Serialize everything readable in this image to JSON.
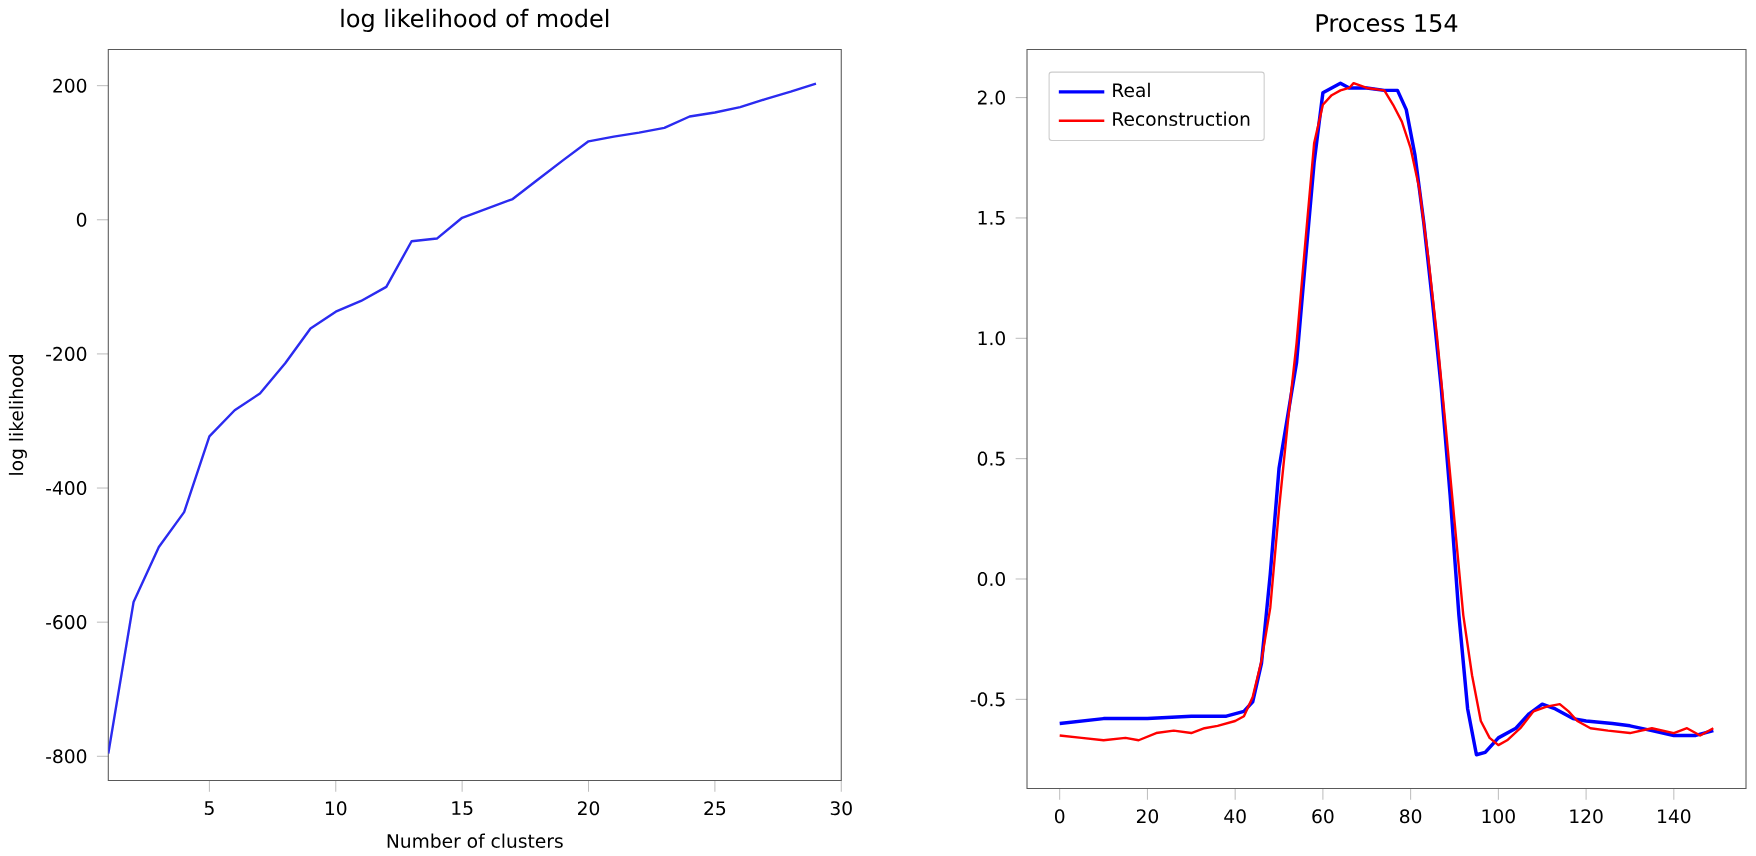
{
  "chart_data": [
    {
      "type": "line",
      "title": "log likelihood of model",
      "xlabel": "Number of clusters",
      "ylabel": "log likelihood",
      "color": "#2b2bf0",
      "x": [
        1,
        2,
        3,
        4,
        5,
        6,
        7,
        8,
        9,
        10,
        11,
        12,
        13,
        14,
        15,
        16,
        17,
        18,
        19,
        20,
        21,
        22,
        23,
        24,
        25,
        26,
        27,
        28,
        29
      ],
      "values": [
        -796,
        -570,
        -488,
        -436,
        -323,
        -284,
        -259,
        -214,
        -162,
        -137,
        -121,
        -100,
        -32,
        -28,
        3,
        17,
        31,
        60,
        89,
        117,
        124,
        130,
        137,
        154,
        160,
        168,
        180,
        191,
        203
      ],
      "xlim": [
        1,
        30
      ],
      "ylim": [
        -836,
        254
      ],
      "xticks": [
        5,
        10,
        15,
        20,
        25,
        30
      ],
      "yticks": [
        -800,
        -600,
        -400,
        -200,
        0,
        200
      ]
    },
    {
      "type": "line",
      "title": "Process 154",
      "legend": "top left",
      "xlim": [
        -7.45,
        156.45
      ],
      "ylim": [
        -0.87,
        2.2
      ],
      "xticks": [
        0,
        20,
        40,
        60,
        80,
        100,
        120,
        140
      ],
      "yticks": [
        {
          "value": -0.5,
          "label": "-0.5"
        },
        {
          "value": 0,
          "label": "0.0"
        },
        {
          "value": 0.5,
          "label": "0.5"
        },
        {
          "value": 1,
          "label": "1.0"
        },
        {
          "value": 1.5,
          "label": "1.5"
        },
        {
          "value": 2,
          "label": "2.0"
        }
      ],
      "series": [
        {
          "name": "Real",
          "color": "#0000ff",
          "x": [
            0,
            10,
            20,
            30,
            38,
            42,
            44,
            46,
            48,
            50,
            52,
            54,
            56,
            58,
            60,
            62,
            64,
            66,
            70,
            74,
            77,
            79,
            81,
            83,
            85,
            87,
            89,
            91,
            93,
            95,
            97,
            100,
            104,
            107,
            110,
            113,
            117,
            120,
            126,
            130,
            135,
            140,
            145,
            149
          ],
          "values": [
            -0.6,
            -0.58,
            -0.58,
            -0.57,
            -0.57,
            -0.55,
            -0.51,
            -0.35,
            0.02,
            0.46,
            0.68,
            0.9,
            1.32,
            1.73,
            2.02,
            2.04,
            2.06,
            2.04,
            2.04,
            2.03,
            2.03,
            1.95,
            1.76,
            1.48,
            1.15,
            0.79,
            0.35,
            -0.15,
            -0.54,
            -0.73,
            -0.72,
            -0.66,
            -0.62,
            -0.56,
            -0.52,
            -0.54,
            -0.58,
            -0.59,
            -0.6,
            -0.61,
            -0.63,
            -0.65,
            -0.65,
            -0.63
          ]
        },
        {
          "name": "Reconstruction",
          "color": "#ff0000",
          "x": [
            0,
            5,
            10,
            15,
            18,
            22,
            26,
            30,
            33,
            36,
            40,
            42,
            44,
            46,
            48,
            50,
            52,
            54,
            56,
            58,
            60,
            62,
            64,
            66,
            67,
            70,
            74,
            76,
            78,
            80,
            82,
            84,
            86,
            88,
            90,
            92,
            94,
            96,
            98,
            100,
            102,
            105,
            108,
            111,
            114,
            116,
            118,
            121,
            125,
            130,
            135,
            140,
            143,
            146,
            149
          ],
          "values": [
            -0.65,
            -0.66,
            -0.67,
            -0.66,
            -0.67,
            -0.64,
            -0.63,
            -0.64,
            -0.62,
            -0.61,
            -0.59,
            -0.57,
            -0.49,
            -0.34,
            -0.12,
            0.29,
            0.65,
            0.98,
            1.4,
            1.81,
            1.97,
            2.01,
            2.03,
            2.04,
            2.06,
            2.04,
            2.03,
            1.97,
            1.9,
            1.79,
            1.62,
            1.34,
            1.01,
            0.63,
            0.24,
            -0.15,
            -0.4,
            -0.59,
            -0.66,
            -0.69,
            -0.67,
            -0.62,
            -0.55,
            -0.53,
            -0.52,
            -0.55,
            -0.59,
            -0.62,
            -0.63,
            -0.64,
            -0.62,
            -0.64,
            -0.62,
            -0.65,
            -0.62
          ]
        }
      ]
    }
  ]
}
